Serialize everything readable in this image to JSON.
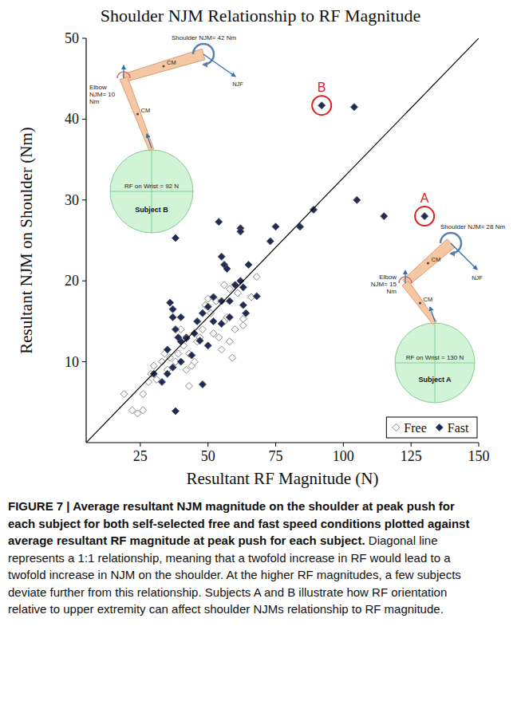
{
  "chart_data": {
    "type": "scatter",
    "title": "Shoulder NJM Relationship to RF Magnitude",
    "x_label": "Resultant RF Magnitude (N)",
    "y_label": "Resultant NJM on Shoulder (Nm)",
    "xlim": [
      5,
      150
    ],
    "ylim": [
      0,
      50
    ],
    "xticks": [
      25,
      50,
      75,
      100,
      125,
      150
    ],
    "yticks": [
      10,
      20,
      30,
      40,
      50
    ],
    "grid": false,
    "legend": "bottom-right",
    "series": [
      {
        "name": "Free",
        "color": "#ffffff",
        "marker": "diamond-open",
        "x": [
          19,
          22,
          24,
          26,
          26,
          28,
          29,
          30,
          31,
          33,
          34,
          35,
          36,
          38,
          39,
          40,
          41,
          42,
          43,
          43,
          44,
          45,
          46,
          47,
          48,
          49,
          50,
          51,
          52,
          53,
          54,
          55,
          56,
          57,
          58,
          59,
          60,
          61,
          63,
          66,
          68,
          63,
          56,
          58
        ],
        "values": [
          6,
          4,
          3.6,
          4,
          6,
          7.5,
          8.5,
          9.5,
          7.8,
          10,
          11,
          9,
          10.5,
          10,
          11,
          14,
          12,
          9,
          11,
          7,
          9.5,
          10,
          12.5,
          13,
          14,
          17,
          17.8,
          16,
          13.5,
          17.5,
          13,
          11.5,
          15,
          15.5,
          12.5,
          10.5,
          14,
          18.5,
          15.3,
          18,
          20.5,
          14.5,
          19.5,
          19
        ]
      },
      {
        "name": "Fast",
        "color": "#1f2a5a",
        "marker": "diamond",
        "x": [
          104,
          92,
          130,
          115,
          105,
          89,
          84,
          75,
          73,
          68,
          62,
          62,
          54,
          55,
          56,
          57,
          60,
          63,
          62,
          65,
          63,
          64,
          58,
          55,
          52,
          50,
          48,
          46,
          42,
          40,
          38,
          37,
          36,
          37,
          38,
          40,
          42,
          45,
          44,
          40,
          37,
          35,
          35,
          33,
          30,
          48,
          38,
          52,
          55,
          58,
          50,
          47,
          39
        ],
        "values": [
          41.5,
          41.7,
          28,
          28,
          30,
          28.8,
          26.7,
          26.7,
          24.9,
          18.1,
          26.5,
          26.1,
          27.3,
          23,
          22,
          21.5,
          19.5,
          19.2,
          20,
          22,
          17,
          16,
          17.5,
          17.5,
          18,
          16.8,
          16,
          15,
          13,
          15.5,
          25.3,
          16.5,
          17.3,
          15.5,
          14,
          12.5,
          12.9,
          13.5,
          10.8,
          10,
          9.3,
          11.5,
          8.5,
          7.5,
          8.5,
          7.2,
          3.9,
          15,
          14.7,
          15.5,
          12,
          12.6,
          13
        ]
      },
      {
        "type": "line",
        "color": "#000000",
        "x": [
          5,
          150
        ],
        "values": [
          0,
          50
        ]
      }
    ],
    "annotations": [
      {
        "text": "A",
        "x": 130,
        "y": 28,
        "color": "#e02020"
      },
      {
        "text": "B",
        "x": 92,
        "y": 41.7,
        "color": "#e02020"
      }
    ]
  },
  "insets": [
    {
      "subject": "Subject B",
      "shoulder": "Shoulder NJM= 42 Nm",
      "elbow": "Elbow NJM= 10 Nm",
      "rf": "RF on Wrist = 92 N",
      "njf": "NJF",
      "cm": [
        "CM",
        "CM"
      ]
    },
    {
      "subject": "Subject A",
      "shoulder": "Shoulder NJM= 28 Nm",
      "elbow": "Elbow NJM= 15 Nm",
      "rf": "RF on Wrist = 130 N",
      "njf": "NJF",
      "cm": [
        "CM",
        "CM"
      ]
    }
  ],
  "caption": {
    "label": "FIGURE 7 | Average resultant NJM magnitude on the shoulder at peak push for each subject for both self-selected free and fast speed conditions plotted against average resultant RF magnitude at peak push for each subject.",
    "text": "Diagonal line represents a 1:1 relationship, meaning that a twofold increase in RF would lead to a twofold increase in NJM on the shoulder. At the higher RF magnitudes, a few subjects deviate further from this relationship. Subjects A and B illustrate how RF orientation relative to upper extremity can affect shoulder NJMs relationship to RF magnitude."
  }
}
